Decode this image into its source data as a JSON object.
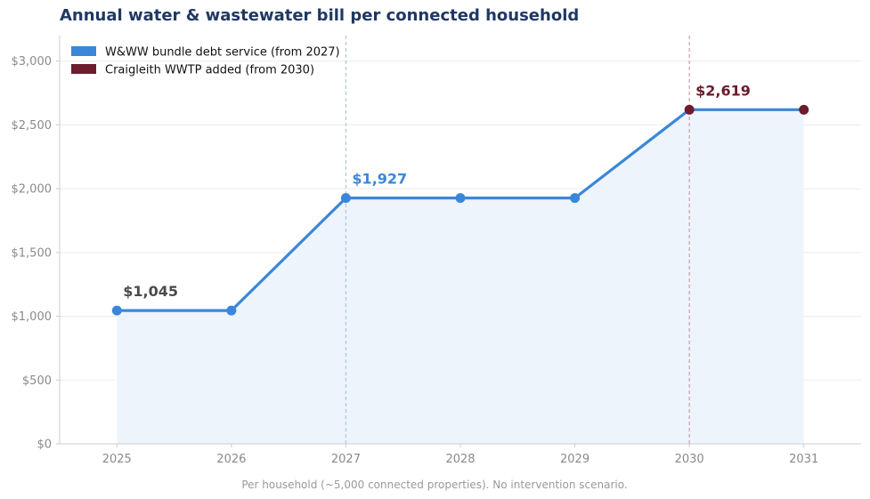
{
  "chart_data": {
    "type": "line",
    "title": "Annual water & wastewater bill per connected household",
    "footnote": "Per household (~5,000 connected properties). No intervention scenario.",
    "x": [
      2025,
      2026,
      2027,
      2028,
      2029,
      2030,
      2031
    ],
    "x_tick_labels": [
      "2025",
      "2026",
      "2027",
      "2028",
      "2029",
      "2030",
      "2031"
    ],
    "xlim": [
      2024.5,
      2031.5
    ],
    "ylim": [
      0,
      3200
    ],
    "y_ticks": [
      0,
      500,
      1000,
      1500,
      2000,
      2500,
      3000
    ],
    "y_tick_labels": [
      "$0",
      "$500",
      "$1,000",
      "$1,500",
      "$2,000",
      "$2,500",
      "$3,000"
    ],
    "grid": "horizontal",
    "series": [
      {
        "name": "W&WW bundle debt service (from 2027)",
        "color": "#3a87d9",
        "x": [
          2025,
          2026,
          2027,
          2028,
          2029,
          2030
        ],
        "values": [
          1045,
          1045,
          1927,
          1927,
          1927,
          2619
        ]
      },
      {
        "name": "Craigleith WWTP added (from 2030)",
        "color": "#6b1c2e",
        "x": [
          2030,
          2031
        ],
        "values": [
          2619,
          2619
        ]
      }
    ],
    "full_line": {
      "x": [
        2025,
        2026,
        2027,
        2028,
        2029,
        2030,
        2031
      ],
      "values": [
        1045,
        1045,
        1927,
        1927,
        1927,
        2619,
        2619
      ]
    },
    "vlines": [
      {
        "x": 2027,
        "color": "#a9c8e8"
      },
      {
        "x": 2030,
        "color": "#c9a0aa"
      }
    ],
    "annotations": [
      {
        "x": 2025,
        "y": 1045,
        "text": "$1,045",
        "color": "#4a4a4a"
      },
      {
        "x": 2027,
        "y": 1927,
        "text": "$1,927",
        "color": "#3a87d9"
      },
      {
        "x": 2030,
        "y": 2619,
        "text": "$2,619",
        "color": "#6b1c2e"
      }
    ],
    "legend_position": "top-left",
    "area_fill_color": "#eef4fc"
  }
}
